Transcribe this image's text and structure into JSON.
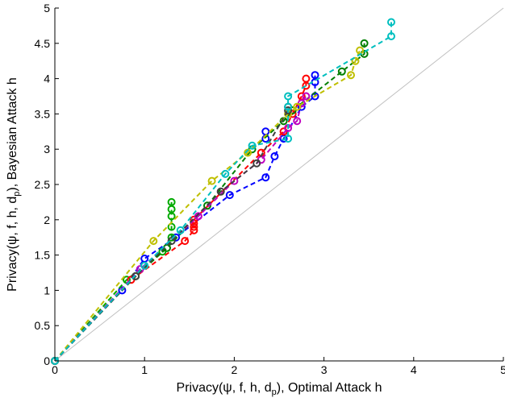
{
  "chart_data": {
    "type": "line",
    "xlabel": {
      "prefix": "Privacy(ψ, f, h, d",
      "sub": "p",
      "suffix": "), Optimal Attack h"
    },
    "ylabel": {
      "prefix": "Privacy(ψ, f, h, d",
      "sub": "p",
      "suffix": "), Bayesian Attack h"
    },
    "xlim": [
      0,
      5
    ],
    "ylim": [
      0,
      5
    ],
    "xticks": [
      "0",
      "1",
      "2",
      "3",
      "4",
      "5"
    ],
    "yticks": [
      "0",
      "0.5",
      "1",
      "1.5",
      "2",
      "2.5",
      "3",
      "3.5",
      "4",
      "4.5",
      "5"
    ],
    "grid": false,
    "reference_line": {
      "x": [
        0,
        5
      ],
      "y": [
        0,
        5
      ],
      "color": "#c0c0c0"
    },
    "series": [
      {
        "color": "#0000ff",
        "points": [
          [
            0,
            0
          ],
          [
            0.75,
            1.0
          ],
          [
            1.0,
            1.45
          ],
          [
            1.35,
            1.75
          ],
          [
            1.95,
            2.35
          ],
          [
            2.35,
            2.6
          ],
          [
            2.45,
            2.9
          ],
          [
            2.55,
            3.15
          ],
          [
            2.75,
            3.6
          ],
          [
            2.9,
            3.75
          ],
          [
            2.9,
            3.95
          ],
          [
            2.9,
            4.05
          ]
        ],
        "extra_points": [
          [
            2.35,
            3.15
          ],
          [
            2.35,
            3.25
          ]
        ]
      },
      {
        "color": "#00aa00",
        "points": [
          [
            0,
            0
          ],
          [
            0.8,
            1.15
          ],
          [
            1.2,
            1.55
          ],
          [
            1.3,
            1.75
          ],
          [
            1.3,
            1.9
          ],
          [
            1.3,
            2.05
          ],
          [
            1.3,
            2.15
          ],
          [
            1.3,
            2.25
          ]
        ]
      },
      {
        "color": "#ff0000",
        "points": [
          [
            0,
            0
          ],
          [
            0.85,
            1.15
          ],
          [
            1.45,
            1.7
          ],
          [
            1.55,
            1.85
          ],
          [
            1.55,
            1.9
          ],
          [
            1.55,
            1.95
          ],
          [
            1.55,
            2.0
          ],
          [
            2.3,
            2.95
          ],
          [
            2.55,
            3.25
          ],
          [
            2.65,
            3.5
          ],
          [
            2.75,
            3.75
          ],
          [
            2.8,
            3.9
          ],
          [
            2.8,
            4.0
          ]
        ]
      },
      {
        "color": "#007f00",
        "points": [
          [
            0,
            0
          ],
          [
            0.9,
            1.2
          ],
          [
            1.25,
            1.6
          ],
          [
            1.7,
            2.2
          ],
          [
            2.2,
            3.0
          ],
          [
            2.55,
            3.4
          ],
          [
            2.65,
            3.55
          ],
          [
            3.2,
            4.1
          ],
          [
            3.45,
            4.35
          ],
          [
            3.45,
            4.5
          ]
        ]
      },
      {
        "color": "#bf00bf",
        "points": [
          [
            0,
            0
          ],
          [
            0.95,
            1.3
          ],
          [
            1.6,
            2.05
          ],
          [
            2.0,
            2.55
          ],
          [
            2.3,
            2.85
          ],
          [
            2.6,
            3.3
          ],
          [
            2.7,
            3.4
          ],
          [
            2.75,
            3.65
          ],
          [
            2.8,
            3.75
          ]
        ]
      },
      {
        "color": "#bfbf00",
        "points": [
          [
            0,
            0
          ],
          [
            1.1,
            1.7
          ],
          [
            1.75,
            2.55
          ],
          [
            2.15,
            2.95
          ],
          [
            2.6,
            3.5
          ],
          [
            2.7,
            3.6
          ],
          [
            3.3,
            4.05
          ],
          [
            3.35,
            4.25
          ],
          [
            3.4,
            4.4
          ]
        ]
      },
      {
        "color": "#404040",
        "points": [
          [
            0,
            0
          ],
          [
            0.9,
            1.2
          ],
          [
            1.3,
            1.7
          ],
          [
            1.85,
            2.4
          ],
          [
            2.25,
            2.8
          ],
          [
            2.6,
            3.55
          ],
          [
            2.6,
            3.6
          ]
        ]
      },
      {
        "color": "#00bfbf",
        "points": [
          [
            0,
            0
          ],
          [
            1.0,
            1.35
          ],
          [
            1.4,
            1.85
          ],
          [
            1.9,
            2.65
          ],
          [
            2.2,
            3.05
          ],
          [
            2.6,
            3.15
          ],
          [
            2.6,
            3.6
          ],
          [
            2.6,
            3.75
          ],
          [
            3.75,
            4.6
          ],
          [
            3.75,
            4.8
          ]
        ]
      }
    ]
  }
}
